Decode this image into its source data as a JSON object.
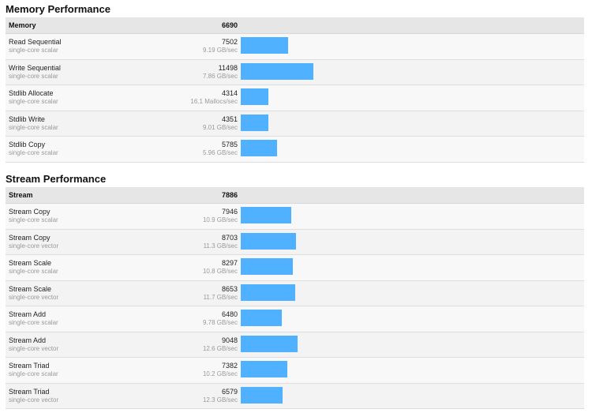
{
  "memory": {
    "title": "Memory Performance",
    "header": {
      "name": "Memory",
      "score": "6690"
    },
    "rows": [
      {
        "name": "Read Sequential",
        "mode": "single-core scalar",
        "score": "7502",
        "rate": "9.19 GB/sec",
        "bar_value": 7502
      },
      {
        "name": "Write Sequential",
        "mode": "single-core scalar",
        "score": "11498",
        "rate": "7.86 GB/sec",
        "bar_value": 11498
      },
      {
        "name": "Stdlib Allocate",
        "mode": "single-core scalar",
        "score": "4314",
        "rate": "16.1 Mallocs/sec",
        "bar_value": 4314
      },
      {
        "name": "Stdlib Write",
        "mode": "single-core scalar",
        "score": "4351",
        "rate": "9.01 GB/sec",
        "bar_value": 4351
      },
      {
        "name": "Stdlib Copy",
        "mode": "single-core scalar",
        "score": "5785",
        "rate": "5.96 GB/sec",
        "bar_value": 5785
      }
    ]
  },
  "stream": {
    "title": "Stream Performance",
    "header": {
      "name": "Stream",
      "score": "7886"
    },
    "rows": [
      {
        "name": "Stream Copy",
        "mode": "single-core scalar",
        "score": "7946",
        "rate": "10.9 GB/sec",
        "bar_value": 7946
      },
      {
        "name": "Stream Copy",
        "mode": "single-core vector",
        "score": "8703",
        "rate": "11.3 GB/sec",
        "bar_value": 8703
      },
      {
        "name": "Stream Scale",
        "mode": "single-core scalar",
        "score": "8297",
        "rate": "10.8 GB/sec",
        "bar_value": 8297
      },
      {
        "name": "Stream Scale",
        "mode": "single-core vector",
        "score": "8653",
        "rate": "11.7 GB/sec",
        "bar_value": 8653
      },
      {
        "name": "Stream Add",
        "mode": "single-core scalar",
        "score": "6480",
        "rate": "9.78 GB/sec",
        "bar_value": 6480
      },
      {
        "name": "Stream Add",
        "mode": "single-core vector",
        "score": "9048",
        "rate": "12.6 GB/sec",
        "bar_value": 9048
      },
      {
        "name": "Stream Triad",
        "mode": "single-core scalar",
        "score": "7382",
        "rate": "10.2 GB/sec",
        "bar_value": 7382
      },
      {
        "name": "Stream Triad",
        "mode": "single-core vector",
        "score": "6579",
        "rate": "12.3 GB/sec",
        "bar_value": 6579
      }
    ]
  },
  "colors": {
    "bar": "#4fb1ff",
    "header_bg": "#e6e6e6"
  }
}
